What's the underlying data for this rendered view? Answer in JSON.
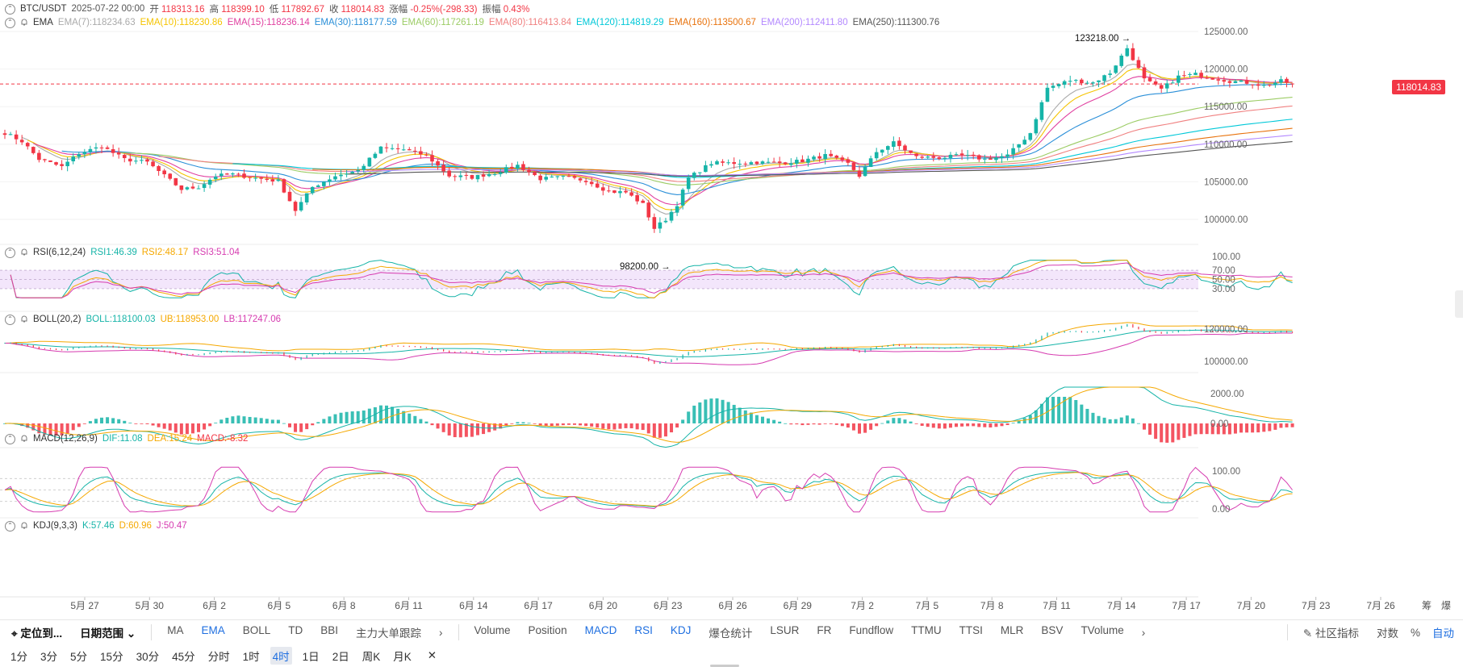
{
  "header": {
    "symbol": "BTC/USDT",
    "time": "2025-07-22 00:00",
    "open_label": "开",
    "open": "118313.16",
    "high_label": "高",
    "high": "118399.10",
    "low_label": "低",
    "low": "117892.67",
    "close_label": "收",
    "close": "118014.83",
    "change_label": "涨幅",
    "change": "-0.25%(-298.33)",
    "amp_label": "振幅",
    "amp": "0.43%"
  },
  "ema_header": {
    "name": "EMA",
    "items": [
      {
        "text": "EMA(7):118234.63",
        "color": "#aaaaaa"
      },
      {
        "text": "EMA(10):118230.86",
        "color": "#f5c400"
      },
      {
        "text": "EMA(15):118236.14",
        "color": "#e040a0"
      },
      {
        "text": "EMA(30):118177.59",
        "color": "#2a8fd8"
      },
      {
        "text": "EMA(60):117261.19",
        "color": "#9ccc65"
      },
      {
        "text": "EMA(80):116413.84",
        "color": "#f08080"
      },
      {
        "text": "EMA(120):114819.29",
        "color": "#00c8d8"
      },
      {
        "text": "EMA(160):113500.67",
        "color": "#e8720c"
      },
      {
        "text": "EMA(200):112411.80",
        "color": "#b388ff"
      },
      {
        "text": "EMA(250):111300.76",
        "color": "#555555"
      }
    ]
  },
  "rsi_header": {
    "name": "RSI(6,12,24)",
    "items": [
      {
        "text": "RSI1:46.39",
        "color": "#16b4a8"
      },
      {
        "text": "RSI2:48.17",
        "color": "#f5a800"
      },
      {
        "text": "RSI3:51.04",
        "color": "#d63bb0"
      }
    ]
  },
  "boll_header": {
    "name": "BOLL(20,2)",
    "items": [
      {
        "text": "BOLL:118100.03",
        "color": "#16b4a8"
      },
      {
        "text": "UB:118953.00",
        "color": "#f5a800"
      },
      {
        "text": "LB:117247.06",
        "color": "#d63bb0"
      }
    ]
  },
  "macd_header": {
    "name": "MACD(12,26,9)",
    "items": [
      {
        "text": "DIF:11.08",
        "color": "#16b4a8"
      },
      {
        "text": "DEA:15.24",
        "color": "#f5a800"
      },
      {
        "text": "MACD:-8.32",
        "color": "#f23645"
      }
    ]
  },
  "kdj_header": {
    "name": "KDJ(9,3,3)",
    "items": [
      {
        "text": "K:57.46",
        "color": "#16b4a8"
      },
      {
        "text": "D:60.96",
        "color": "#f5a800"
      },
      {
        "text": "J:50.47",
        "color": "#d63bb0"
      }
    ]
  },
  "annotations": {
    "high_mark": "123218.00",
    "low_mark": "98200.00"
  },
  "last_price": "118014.83",
  "price_axis": [
    "125000.00",
    "120000.00",
    "115000.00",
    "110000.00",
    "105000.00",
    "100000.00"
  ],
  "rsi_axis": [
    "100.00",
    "70.00",
    "50.00",
    "30.00"
  ],
  "boll_axis": [
    "120000.00",
    "100000.00"
  ],
  "macd_axis": [
    "2000.00",
    "0.00"
  ],
  "kdj_axis": [
    "100.00",
    "0.00"
  ],
  "date_labels": [
    "5月 27",
    "5月 30",
    "6月 2",
    "6月 5",
    "6月 8",
    "6月 11",
    "6月 14",
    "6月 17",
    "6月 20",
    "6月 23",
    "6月 26",
    "6月 29",
    "7月 2",
    "7月 5",
    "7月 8",
    "7月 11",
    "7月 14",
    "7月 17",
    "7月 20",
    "7月 23",
    "7月 26"
  ],
  "axis_corner": [
    "筹",
    "爆"
  ],
  "toolbar1": {
    "locate": "定位到...",
    "range": "日期范围",
    "main_indicators": [
      {
        "label": "MA",
        "active": false
      },
      {
        "label": "EMA",
        "active": true
      },
      {
        "label": "BOLL",
        "active": false
      },
      {
        "label": "TD",
        "active": false
      },
      {
        "label": "BBI",
        "active": false
      },
      {
        "label": "主力大单跟踪",
        "active": false
      }
    ],
    "sub_indicators": [
      {
        "label": "Volume",
        "active": false
      },
      {
        "label": "Position",
        "active": false
      },
      {
        "label": "MACD",
        "active": true
      },
      {
        "label": "RSI",
        "active": true
      },
      {
        "label": "KDJ",
        "active": true
      },
      {
        "label": "爆仓统计",
        "active": false
      },
      {
        "label": "LSUR",
        "active": false
      },
      {
        "label": "FR",
        "active": false
      },
      {
        "label": "Fundflow",
        "active": false
      },
      {
        "label": "TTMU",
        "active": false
      },
      {
        "label": "TTSI",
        "active": false
      },
      {
        "label": "MLR",
        "active": false
      },
      {
        "label": "BSV",
        "active": false
      },
      {
        "label": "TVolume",
        "active": false
      }
    ],
    "community": "社区指标",
    "log": "对数",
    "percent": "%",
    "auto": "自动"
  },
  "intervals": [
    {
      "label": "1分",
      "active": false
    },
    {
      "label": "3分",
      "active": false
    },
    {
      "label": "5分",
      "active": false
    },
    {
      "label": "15分",
      "active": false
    },
    {
      "label": "30分",
      "active": false
    },
    {
      "label": "45分",
      "active": false
    },
    {
      "label": "分时",
      "active": false
    },
    {
      "label": "1时",
      "active": false
    },
    {
      "label": "4时",
      "active": true
    },
    {
      "label": "1日",
      "active": false
    },
    {
      "label": "2日",
      "active": false
    },
    {
      "label": "周K",
      "active": false
    },
    {
      "label": "月K",
      "active": false
    }
  ],
  "close_symbol": "✕",
  "chart_data": {
    "type": "candlestick",
    "interval": "4时",
    "price_range": [
      97000,
      126500
    ],
    "anchors": [
      [
        0,
        111500
      ],
      [
        3,
        110400
      ],
      [
        6,
        108000
      ],
      [
        10,
        107000
      ],
      [
        13,
        108800
      ],
      [
        17,
        109700
      ],
      [
        21,
        108000
      ],
      [
        25,
        107600
      ],
      [
        28,
        105800
      ],
      [
        31,
        104000
      ],
      [
        34,
        104300
      ],
      [
        37,
        105800
      ],
      [
        40,
        106000
      ],
      [
        44,
        105500
      ],
      [
        48,
        105100
      ],
      [
        51,
        101200
      ],
      [
        54,
        104300
      ],
      [
        58,
        105800
      ],
      [
        62,
        106500
      ],
      [
        66,
        109500
      ],
      [
        70,
        109300
      ],
      [
        74,
        108500
      ],
      [
        78,
        105800
      ],
      [
        82,
        105600
      ],
      [
        86,
        106200
      ],
      [
        90,
        107200
      ],
      [
        94,
        105400
      ],
      [
        98,
        105600
      ],
      [
        102,
        105200
      ],
      [
        106,
        103700
      ],
      [
        109,
        103600
      ],
      [
        112,
        102000
      ],
      [
        114,
        98800
      ],
      [
        116,
        100000
      ],
      [
        118,
        102000
      ],
      [
        120,
        105500
      ],
      [
        124,
        107500
      ],
      [
        128,
        107500
      ],
      [
        132,
        107600
      ],
      [
        136,
        107500
      ],
      [
        140,
        107800
      ],
      [
        144,
        108500
      ],
      [
        148,
        107400
      ],
      [
        150,
        105800
      ],
      [
        153,
        109000
      ],
      [
        156,
        110200
      ],
      [
        160,
        108300
      ],
      [
        164,
        108200
      ],
      [
        168,
        108500
      ],
      [
        172,
        108000
      ],
      [
        176,
        108500
      ],
      [
        180,
        111500
      ],
      [
        183,
        117500
      ],
      [
        187,
        118500
      ],
      [
        191,
        118200
      ],
      [
        194,
        119500
      ],
      [
        197,
        122800
      ],
      [
        200,
        118600
      ],
      [
        203,
        117300
      ],
      [
        206,
        119000
      ],
      [
        209,
        119300
      ],
      [
        212,
        118800
      ],
      [
        215,
        118400
      ],
      [
        218,
        118200
      ],
      [
        221,
        117800
      ],
      [
        224,
        118400
      ],
      [
        226,
        118014.83
      ]
    ],
    "ema_values_last": [
      118234.63,
      118230.86,
      118236.14,
      118177.59,
      117261.19,
      116413.84,
      114819.29,
      113500.67,
      112411.8,
      111300.76
    ],
    "rsi_last": [
      46.39,
      48.17,
      51.04
    ],
    "boll_last": {
      "mid": 118100.03,
      "ub": 118953.0,
      "lb": 117247.06
    },
    "macd_last": {
      "dif": 11.08,
      "dea": 15.24,
      "macd": -8.32
    },
    "kdj_last": {
      "k": 57.46,
      "d": 60.96,
      "j": 50.47
    },
    "high": 123218.0,
    "low": 98200.0
  }
}
